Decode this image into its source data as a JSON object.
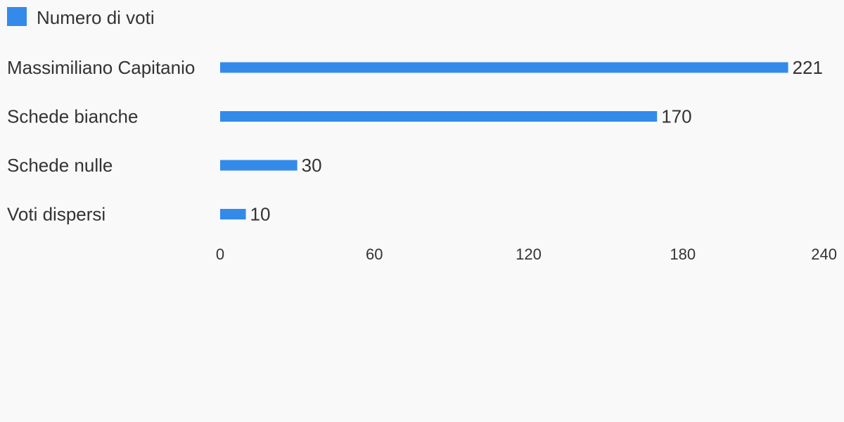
{
  "chart_data": {
    "type": "hbar",
    "categories": [
      "Massimiliano Capitanio",
      "Schede bianche",
      "Schede nulle",
      "Voti dispersi"
    ],
    "series": [
      {
        "name": "Numero di voti",
        "color": "#338ae9",
        "values": [
          221,
          170,
          30,
          10
        ]
      }
    ],
    "xlim": [
      0,
      240
    ],
    "xticks": [
      0,
      60,
      120,
      180,
      240
    ],
    "grid": false,
    "legend": "top-left"
  }
}
